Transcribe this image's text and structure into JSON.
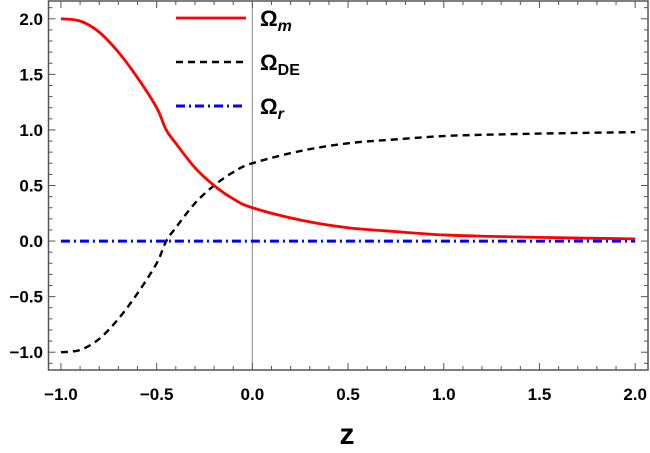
{
  "chart_data": {
    "type": "line",
    "title": "",
    "xlabel": "z",
    "ylabel": "",
    "xlim": [
      -1.065,
      2.067
    ],
    "ylim": [
      -1.16,
      2.16
    ],
    "xticks": [
      -1.0,
      -0.5,
      0.0,
      0.5,
      1.0,
      1.5,
      2.0
    ],
    "xtick_labels": [
      "−1.0",
      "−0.5",
      "0.0",
      "0.5",
      "1.0",
      "1.5",
      "2.0"
    ],
    "yticks": [
      -1.0,
      -0.5,
      0.0,
      0.5,
      1.0,
      1.5,
      2.0
    ],
    "ytick_labels": [
      "−1.0",
      "−0.5",
      "0.0",
      "0.5",
      "1.0",
      "1.5",
      "2.0"
    ],
    "grid": false,
    "legend_position": "top-center",
    "x": [
      -1.0,
      -0.9,
      -0.8,
      -0.7,
      -0.6,
      -0.5,
      -0.45,
      -0.4,
      -0.3,
      -0.2,
      -0.1,
      0.0,
      0.25,
      0.5,
      0.75,
      1.0,
      1.25,
      1.5,
      1.75,
      2.0
    ],
    "series": [
      {
        "name": "Ω",
        "sub": "m",
        "sub_italic": true,
        "color": "#ff0000",
        "style": "solid",
        "values": [
          2.0,
          1.98,
          1.88,
          1.7,
          1.47,
          1.2,
          1.0,
          0.88,
          0.66,
          0.5,
          0.38,
          0.3,
          0.19,
          0.12,
          0.085,
          0.055,
          0.042,
          0.033,
          0.026,
          0.02
        ]
      },
      {
        "name": "Ω",
        "sub": "DE",
        "sub_italic": false,
        "color": "#000000",
        "style": "dashed",
        "values": [
          -1.0,
          -0.98,
          -0.88,
          -0.7,
          -0.47,
          -0.2,
          0.0,
          0.12,
          0.34,
          0.5,
          0.62,
          0.7,
          0.81,
          0.88,
          0.915,
          0.945,
          0.958,
          0.967,
          0.974,
          0.98
        ]
      },
      {
        "name": "Ω",
        "sub": "r",
        "sub_italic": true,
        "color": "#0000ff",
        "style": "dashdot",
        "values": [
          0,
          0,
          0,
          0,
          0,
          0,
          0,
          0,
          0,
          0,
          0,
          0,
          0,
          0,
          0,
          0,
          0,
          0,
          0,
          0
        ]
      }
    ]
  }
}
